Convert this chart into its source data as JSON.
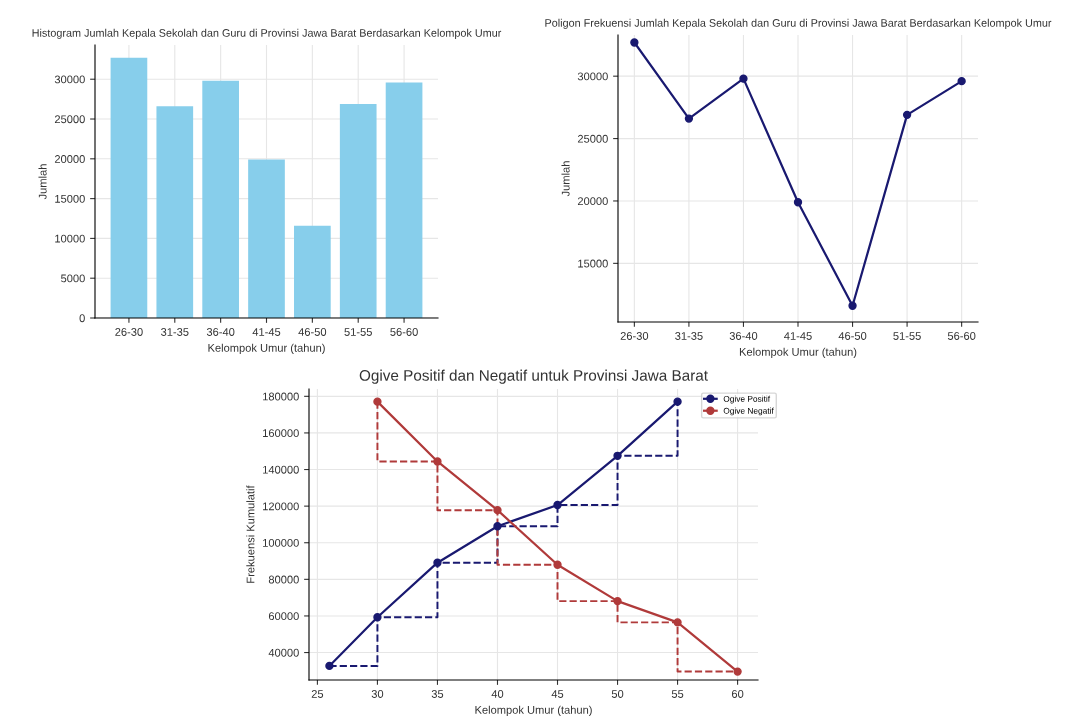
{
  "chart_data": [
    {
      "type": "bar",
      "title": "Histogram Jumlah Kepala Sekolah dan Guru di Provinsi Jawa Barat Berdasarkan Kelompok Umur",
      "xlabel": "Kelompok Umur (tahun)",
      "ylabel": "Jumlah",
      "categories": [
        "26-30",
        "31-35",
        "36-40",
        "41-45",
        "46-50",
        "51-55",
        "56-60"
      ],
      "values": [
        32700,
        26600,
        29800,
        19900,
        11600,
        26900,
        29600
      ],
      "color": "#87ceeb",
      "ylim": [
        0,
        34300
      ],
      "yticks": [
        0,
        5000,
        10000,
        15000,
        20000,
        25000,
        30000
      ],
      "grid": true
    },
    {
      "type": "line",
      "title": "Poligon Frekuensi Jumlah Kepala Sekolah dan Guru di Provinsi Jawa Barat Berdasarkan Kelompok Umur",
      "xlabel": "Kelompok Umur (tahun)",
      "ylabel": "Jumlah",
      "categories": [
        "26-30",
        "31-35",
        "36-40",
        "41-45",
        "46-50",
        "51-55",
        "56-60"
      ],
      "values": [
        32700,
        26600,
        29800,
        19900,
        11600,
        26900,
        29600
      ],
      "color": "#191970",
      "marker": "circle",
      "ylim": [
        10300,
        33300
      ],
      "yticks": [
        15000,
        20000,
        25000,
        30000
      ],
      "grid": true
    },
    {
      "type": "line",
      "title": "Ogive Positif dan Negatif untuk Provinsi Jawa Barat",
      "xlabel": "Kelompok Umur (tahun)",
      "ylabel": "Frekuensi Kumulatif",
      "marker": "circle",
      "grid": true,
      "legend": "top right",
      "xlim": [
        24.3,
        61.7
      ],
      "xticks": [
        25,
        30,
        35,
        40,
        45,
        50,
        55,
        60
      ],
      "ylim": [
        25000,
        184000
      ],
      "yticks": [
        40000,
        60000,
        80000,
        100000,
        120000,
        140000,
        160000,
        180000
      ],
      "series": [
        {
          "name": "Ogive Positif",
          "color": "#191970",
          "x": [
            26,
            30,
            35,
            40,
            45,
            50,
            55
          ],
          "values": [
            32700,
            59300,
            89100,
            109000,
            120600,
            147500,
            177100
          ]
        },
        {
          "name": "Ogive Negatif",
          "color": "#b03a3a",
          "x": [
            30,
            35,
            40,
            45,
            50,
            55,
            60
          ],
          "values": [
            177100,
            144400,
            117800,
            88000,
            68100,
            56500,
            29600
          ]
        },
        {
          "type": "step",
          "color": "#191970",
          "line_style": "dashed",
          "marker": "none",
          "x": [
            26,
            30,
            35,
            40,
            45,
            50,
            55
          ],
          "values": [
            32700,
            59300,
            89100,
            109000,
            120600,
            147500,
            177100
          ]
        },
        {
          "type": "step",
          "color": "#b03a3a",
          "line_style": "dashed",
          "marker": "none",
          "x": [
            30,
            30,
            35,
            40,
            45,
            50,
            55,
            60
          ],
          "values": [
            177100,
            144400,
            117800,
            88000,
            68100,
            56500,
            29600,
            29600
          ]
        }
      ]
    }
  ]
}
